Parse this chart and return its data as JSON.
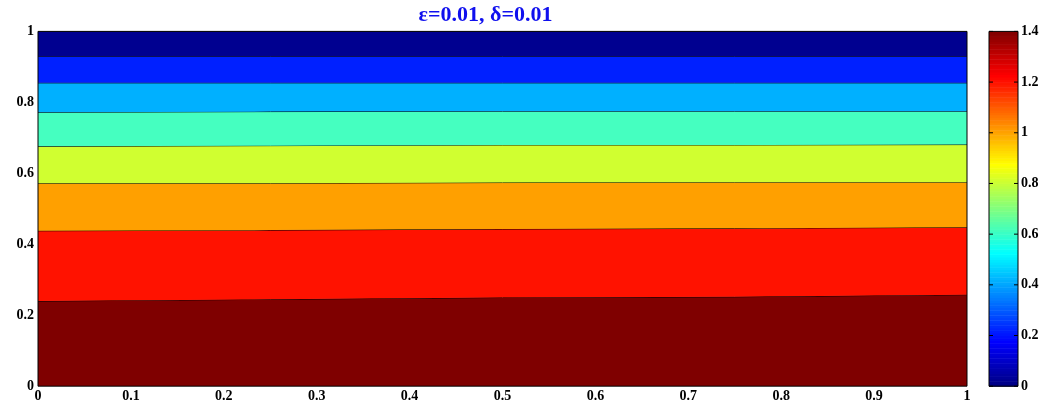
{
  "chart_data": {
    "type": "area",
    "title": "ε=0.01, δ=0.01",
    "x": [
      0,
      0.25,
      0.5,
      0.75,
      1
    ],
    "series": [
      {
        "color": "#7f0000",
        "values": [
          0.24,
          0.245,
          0.25,
          0.252,
          0.258
        ]
      },
      {
        "color": "#ff1200",
        "values": [
          0.438,
          0.44,
          0.443,
          0.445,
          0.448
        ]
      },
      {
        "color": "#ffa000",
        "values": [
          0.572,
          0.572,
          0.574,
          0.575,
          0.575
        ]
      },
      {
        "color": "#d0ff30",
        "values": [
          0.676,
          0.678,
          0.68,
          0.68,
          0.681
        ]
      },
      {
        "color": "#45ffc0",
        "values": [
          0.772,
          0.774,
          0.775,
          0.775,
          0.775
        ]
      },
      {
        "color": "#00b0ff",
        "values": [
          0.855,
          0.855,
          0.855,
          0.855,
          0.855
        ]
      },
      {
        "color": "#0020ff",
        "values": [
          0.93,
          0.93,
          0.93,
          0.93,
          0.93
        ]
      },
      {
        "color": "#000090",
        "values": [
          1,
          1,
          1,
          1,
          1
        ]
      }
    ],
    "xlim": [
      0,
      1
    ],
    "xticks": [
      0,
      0.1,
      0.2,
      0.3,
      0.4,
      0.5,
      0.6,
      0.7,
      0.8,
      0.9,
      1
    ],
    "ylim": [
      0,
      1
    ],
    "yticks": [
      0,
      0.2,
      0.4,
      0.6,
      0.8,
      1
    ],
    "clim": [
      0,
      1.4
    ],
    "cticks": [
      0,
      0.2,
      0.4,
      0.6,
      0.8,
      1,
      1.2,
      1.4
    ],
    "legend": false,
    "grid": false
  }
}
